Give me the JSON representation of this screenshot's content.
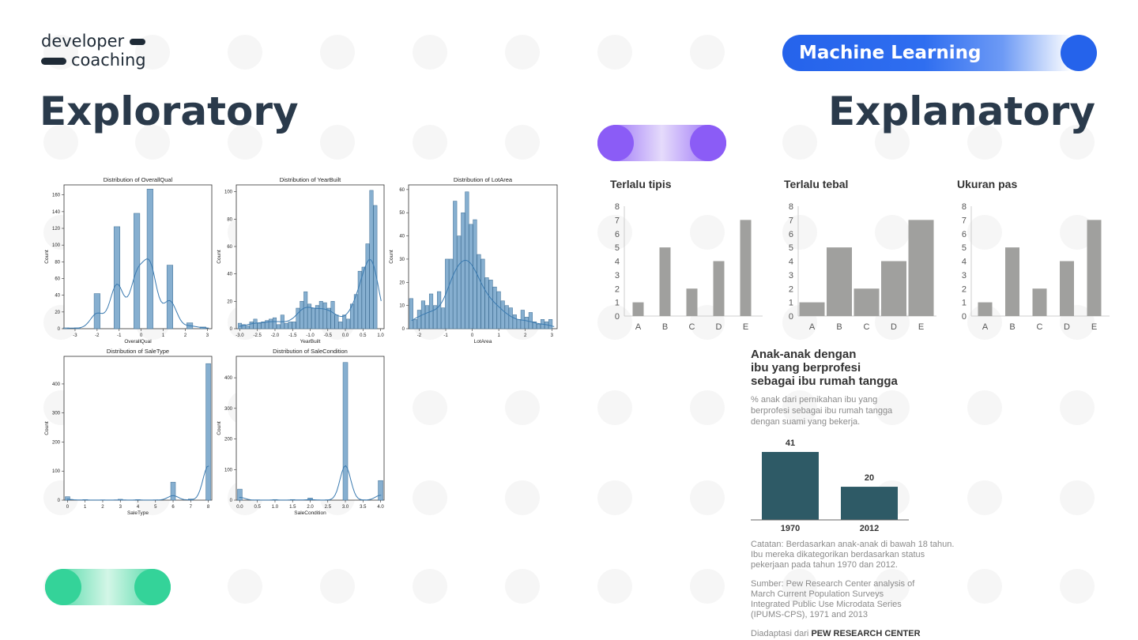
{
  "logo": {
    "line1": "developer",
    "line2": "coaching"
  },
  "badge": {
    "label": "Machine Learning",
    "color": "#2563eb"
  },
  "headings": {
    "left": "Exploratory",
    "right": "Explanatory"
  },
  "toggles": {
    "purple": "#8b5cf6",
    "green": "#34d399"
  },
  "exploratory": {
    "bar_color": "#86afd0",
    "line_color": "#3a7ab0",
    "charts": [
      {
        "title": "Distribution of OverallQual",
        "xlabel": "OverallQual",
        "ylabel": "Count",
        "xticks": [
          "-3",
          "-2",
          "-1",
          "0",
          "1",
          "2",
          "3"
        ],
        "yticks": [
          "0",
          "20",
          "40",
          "60",
          "80",
          "100",
          "120",
          "140",
          "160"
        ]
      },
      {
        "title": "Distribution of YearBuilt",
        "xlabel": "YearBuilt",
        "ylabel": "Count",
        "xticks": [
          "-3.0",
          "-2.5",
          "-2.0",
          "-1.5",
          "-1.0",
          "-0.5",
          "0.0",
          "0.5",
          "1.0"
        ],
        "yticks": [
          "0",
          "20",
          "40",
          "60",
          "80",
          "100"
        ]
      },
      {
        "title": "Distribution of LotArea",
        "xlabel": "LotArea",
        "ylabel": "Count",
        "xticks": [
          "-2",
          "-1",
          "0",
          "1",
          "2",
          "3"
        ],
        "yticks": [
          "0",
          "10",
          "20",
          "30",
          "40",
          "50",
          "60"
        ]
      },
      {
        "title": "Distribution of SaleType",
        "xlabel": "SaleType",
        "ylabel": "Count",
        "xticks": [
          "0",
          "1",
          "2",
          "3",
          "4",
          "5",
          "6",
          "7",
          "8"
        ],
        "yticks": [
          "0",
          "100",
          "200",
          "300",
          "400"
        ]
      },
      {
        "title": "Distribution of SaleCondition",
        "xlabel": "SaleCondition",
        "ylabel": "Count",
        "xticks": [
          "0.0",
          "0.5",
          "1.0",
          "1.5",
          "2.0",
          "2.5",
          "3.0",
          "3.5",
          "4.0"
        ],
        "yticks": [
          "0",
          "100",
          "200",
          "300",
          "400"
        ]
      }
    ]
  },
  "chart_data": [
    {
      "type": "bar",
      "title": "Distribution of OverallQual",
      "xlabel": "OverallQual",
      "ylabel": "Count",
      "xlim": [
        -3.5,
        3.2
      ],
      "ylim": [
        0,
        172
      ],
      "x": [
        -3.4,
        -3.2,
        -2.9,
        -2.6,
        -2.3,
        -2.0,
        -1.7,
        -1.4,
        -1.1,
        -0.8,
        -0.5,
        -0.2,
        0.1,
        0.4,
        0.7,
        1.0,
        1.3,
        1.6,
        1.9,
        2.2,
        2.5,
        2.8
      ],
      "values": [
        1,
        0,
        1,
        0,
        0,
        42,
        0,
        0,
        122,
        0,
        0,
        138,
        0,
        167,
        0,
        0,
        76,
        0,
        0,
        7,
        0,
        2
      ]
    },
    {
      "type": "bar",
      "title": "Distribution of YearBuilt",
      "xlabel": "YearBuilt",
      "ylabel": "Count",
      "xlim": [
        -3.1,
        1.1
      ],
      "ylim": [
        0,
        105
      ],
      "x": [
        -3.0,
        -2.89,
        -2.78,
        -2.67,
        -2.56,
        -2.45,
        -2.34,
        -2.23,
        -2.12,
        -2.01,
        -1.9,
        -1.79,
        -1.68,
        -1.57,
        -1.46,
        -1.35,
        -1.24,
        -1.13,
        -1.02,
        -0.91,
        -0.8,
        -0.69,
        -0.58,
        -0.47,
        -0.36,
        -0.25,
        -0.14,
        -0.03,
        0.08,
        0.19,
        0.3,
        0.41,
        0.52,
        0.63,
        0.74,
        0.85,
        0.96
      ],
      "values": [
        4,
        3,
        2,
        5,
        7,
        4,
        5,
        6,
        7,
        8,
        3,
        10,
        4,
        5,
        5,
        15,
        20,
        27,
        18,
        15,
        17,
        20,
        19,
        15,
        20,
        10,
        5,
        10,
        7,
        18,
        25,
        42,
        45,
        62,
        101,
        90,
        0
      ]
    },
    {
      "type": "bar",
      "title": "Distribution of LotArea",
      "xlabel": "LotArea",
      "ylabel": "Count",
      "xlim": [
        -2.4,
        3.2
      ],
      "ylim": [
        0,
        62
      ],
      "x": [
        -2.3,
        -2.15,
        -2.0,
        -1.85,
        -1.7,
        -1.55,
        -1.4,
        -1.25,
        -1.1,
        -0.95,
        -0.8,
        -0.65,
        -0.5,
        -0.35,
        -0.2,
        -0.05,
        0.1,
        0.25,
        0.4,
        0.55,
        0.7,
        0.85,
        1.0,
        1.15,
        1.3,
        1.45,
        1.6,
        1.75,
        1.9,
        2.05,
        2.2,
        2.35,
        2.5,
        2.65,
        2.8,
        2.95
      ],
      "values": [
        13,
        4,
        8,
        12,
        10,
        15,
        10,
        16,
        9,
        30,
        30,
        55,
        40,
        50,
        59,
        45,
        47,
        32,
        30,
        22,
        21,
        18,
        16,
        12,
        10,
        9,
        6,
        4,
        8,
        5,
        7,
        3,
        2,
        4,
        3,
        4
      ]
    },
    {
      "type": "bar",
      "title": "Distribution of SaleType",
      "xlabel": "SaleType",
      "ylabel": "Count",
      "xlim": [
        -0.2,
        8.2
      ],
      "ylim": [
        0,
        495
      ],
      "x": [
        0,
        1,
        2,
        3,
        4,
        5,
        6,
        7,
        8
      ],
      "values": [
        12,
        2,
        1,
        3,
        2,
        1,
        62,
        4,
        470
      ]
    },
    {
      "type": "bar",
      "title": "Distribution of SaleCondition",
      "xlabel": "SaleCondition",
      "ylabel": "Count",
      "xlim": [
        -0.1,
        4.1
      ],
      "ylim": [
        0,
        470
      ],
      "x": [
        0,
        0.5,
        1,
        1.5,
        2,
        2.5,
        3,
        3.5,
        4
      ],
      "values": [
        36,
        1,
        2,
        2,
        7,
        1,
        450,
        1,
        64
      ]
    },
    {
      "type": "bar",
      "title": "Terlalu tipis",
      "categories": [
        "A",
        "B",
        "C",
        "D",
        "E"
      ],
      "values": [
        1,
        5,
        2,
        4,
        7
      ],
      "ylim": [
        0,
        8
      ]
    },
    {
      "type": "bar",
      "title": "Terlalu tebal",
      "categories": [
        "A",
        "B",
        "C",
        "D",
        "E"
      ],
      "values": [
        1,
        5,
        2,
        4,
        7
      ],
      "ylim": [
        0,
        8
      ]
    },
    {
      "type": "bar",
      "title": "Ukuran pas",
      "categories": [
        "A",
        "B",
        "C",
        "D",
        "E"
      ],
      "values": [
        1,
        5,
        2,
        4,
        7
      ],
      "ylim": [
        0,
        8
      ]
    },
    {
      "type": "bar",
      "title": "Anak-anak dengan ibu yang berprofesi sebagai ibu rumah tangga",
      "categories": [
        "1970",
        "2012"
      ],
      "values": [
        41,
        20
      ]
    }
  ],
  "explanatory": {
    "bar_color": "#a0a09e",
    "yticks": [
      "0",
      "1",
      "2",
      "3",
      "4",
      "5",
      "6",
      "7",
      "8"
    ],
    "pew": {
      "title_lines": [
        "Anak-anak dengan",
        "ibu yang berprofesi",
        "sebagai ibu rumah tangga"
      ],
      "subtitle_lines": [
        "% anak dari pernikahan ibu yang",
        "berprofesi sebagai ibu rumah tangga",
        "dengan suami yang bekerja."
      ],
      "bar_color": "#2e5a66",
      "value_labels": [
        "41",
        "20"
      ],
      "note_lines": [
        "Catatan: Berdasarkan anak-anak di bawah 18 tahun.",
        "Ibu mereka dikategorikan berdasarkan status",
        "pekerjaan pada tahun 1970 dan 2012."
      ],
      "source_lines": [
        "Sumber: Pew Research Center analysis of",
        "March Current Population Surveys",
        "Integrated Public Use Microdata Series",
        "(IPUMS-CPS), 1971 and 2013"
      ],
      "adapted_prefix": "Diadaptasi dari ",
      "adapted_bold": "PEW RESEARCH CENTER"
    }
  }
}
